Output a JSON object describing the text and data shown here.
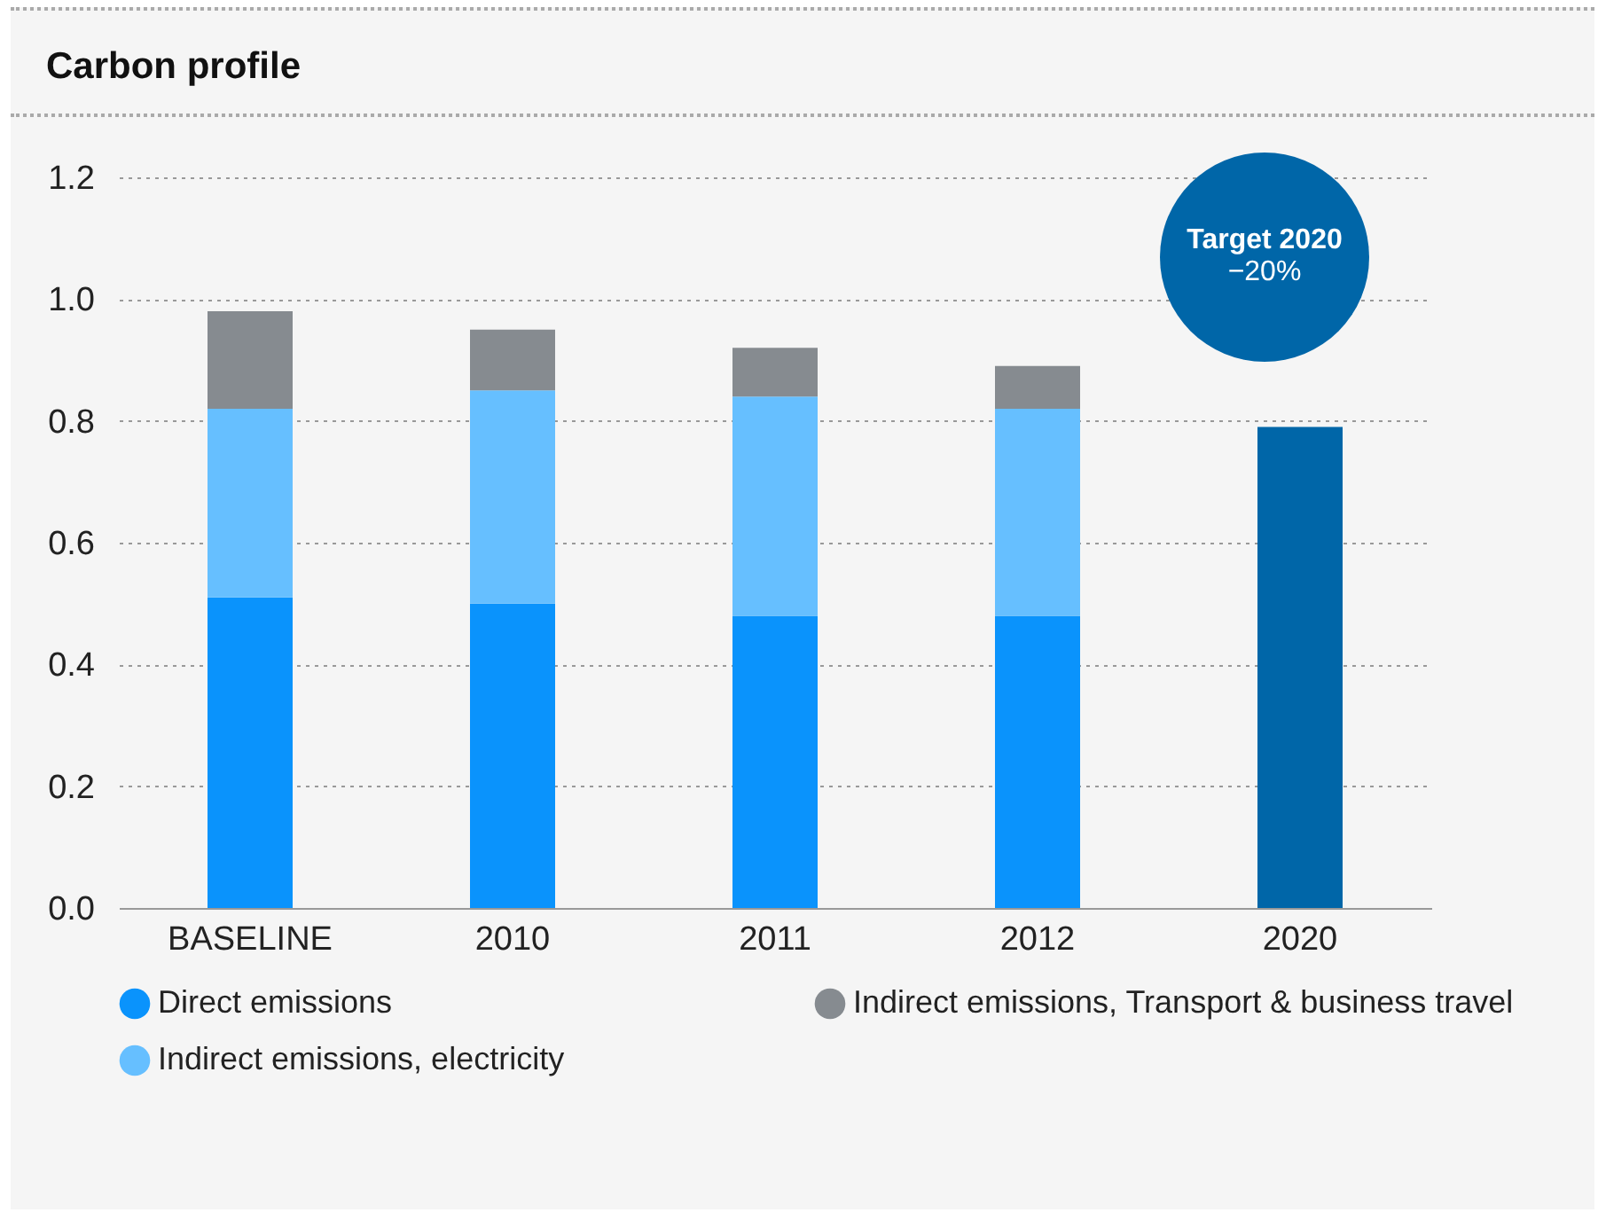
{
  "chart_data": {
    "type": "bar",
    "title": "Carbon profile",
    "stacked": true,
    "categories": [
      "BASELINE",
      "2010",
      "2011",
      "2012",
      "2020"
    ],
    "series": [
      {
        "name": "Direct emissions",
        "color": "#0a93fc",
        "values": [
          0.51,
          0.5,
          0.48,
          0.48,
          null
        ]
      },
      {
        "name": "Indirect emissions, electricity",
        "color": "#66bfff",
        "values": [
          0.31,
          0.35,
          0.36,
          0.34,
          null
        ]
      },
      {
        "name": "Indirect emissions, Transport & business travel",
        "color": "#868b90",
        "values": [
          0.16,
          0.1,
          0.08,
          0.07,
          null
        ]
      },
      {
        "color": "#0066a8",
        "values": [
          null,
          null,
          null,
          null,
          0.79
        ]
      }
    ],
    "ylim": [
      0,
      1.2
    ],
    "yticks": [
      {
        "value": 0,
        "label": "0.0"
      },
      {
        "value": 0.2,
        "label": "0.2"
      },
      {
        "value": 0.4,
        "label": "0.4"
      },
      {
        "value": 0.6,
        "label": "0.6"
      },
      {
        "value": 0.8,
        "label": "0.8"
      },
      {
        "value": 1.0,
        "label": "1.0"
      },
      {
        "value": 1.2,
        "label": "1.2"
      }
    ],
    "grid": "y",
    "legend": "bottom",
    "annotations": [
      "Target 2020",
      "−20%"
    ]
  }
}
